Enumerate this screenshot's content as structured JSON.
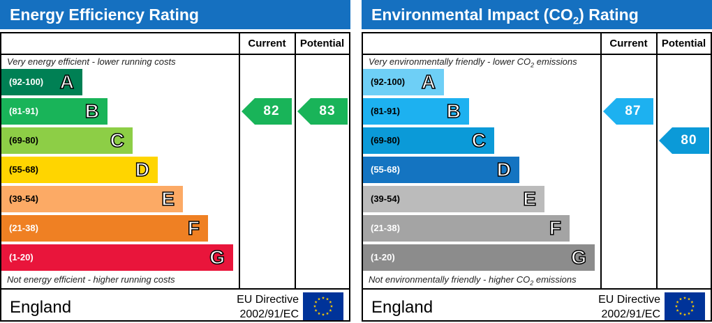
{
  "chart_data": [
    {
      "type": "bar",
      "title": "Energy Efficiency Rating",
      "columns": [
        "Current",
        "Potential"
      ],
      "top_note": "Very energy efficient - lower running costs",
      "bottom_note": "Not energy efficient - higher running costs",
      "bands": [
        {
          "range": "(92-100)",
          "letter": "A",
          "color": "#008054"
        },
        {
          "range": "(81-91)",
          "letter": "B",
          "color": "#19b459"
        },
        {
          "range": "(69-80)",
          "letter": "C",
          "color": "#8dce46"
        },
        {
          "range": "(55-68)",
          "letter": "D",
          "color": "#ffd500"
        },
        {
          "range": "(39-54)",
          "letter": "E",
          "color": "#fcaa65"
        },
        {
          "range": "(21-38)",
          "letter": "F",
          "color": "#ef8023"
        },
        {
          "range": "(1-20)",
          "letter": "G",
          "color": "#e9153b"
        }
      ],
      "current": {
        "value": 82,
        "band": "B",
        "color": "#19b459"
      },
      "potential": {
        "value": 83,
        "band": "B",
        "color": "#19b459"
      },
      "country": "England",
      "directive_line1": "EU Directive",
      "directive_line2": "2002/91/EC"
    },
    {
      "type": "bar",
      "title_prefix": "Environmental Impact (CO",
      "title_sub": "2",
      "title_suffix": ") Rating",
      "columns": [
        "Current",
        "Potential"
      ],
      "top_note_prefix": "Very environmentally friendly - lower CO",
      "top_note_sub": "2",
      "top_note_suffix": " emissions",
      "bottom_note_prefix": "Not environmentally friendly - higher CO",
      "bottom_note_sub": "2",
      "bottom_note_suffix": " emissions",
      "bands": [
        {
          "range": "(92-100)",
          "letter": "A",
          "color": "#6ecff6"
        },
        {
          "range": "(81-91)",
          "letter": "B",
          "color": "#1db1f0"
        },
        {
          "range": "(69-80)",
          "letter": "C",
          "color": "#0b9ad8"
        },
        {
          "range": "(55-68)",
          "letter": "D",
          "color": "#1474c1"
        },
        {
          "range": "(39-54)",
          "letter": "E",
          "color": "#bbbbbb"
        },
        {
          "range": "(21-38)",
          "letter": "F",
          "color": "#a4a4a4"
        },
        {
          "range": "(1-20)",
          "letter": "G",
          "color": "#8c8c8c"
        }
      ],
      "current": {
        "value": 87,
        "band": "B",
        "color": "#1db1f0"
      },
      "potential": {
        "value": 80,
        "band": "C",
        "color": "#0b9ad8"
      },
      "country": "England",
      "directive_line1": "EU Directive",
      "directive_line2": "2002/91/EC"
    }
  ]
}
